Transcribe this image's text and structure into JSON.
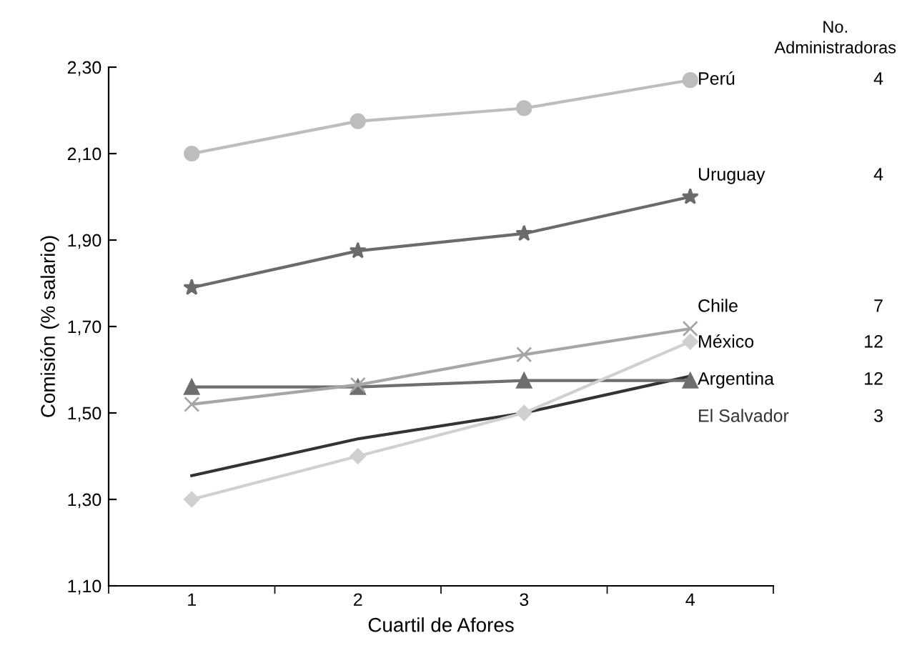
{
  "chart_data": {
    "type": "line",
    "xlabel": "Cuartil de Afores",
    "ylabel": "Comisión (% salario)",
    "categories": [
      "1",
      "2",
      "3",
      "4"
    ],
    "ylim": [
      1.1,
      2.3
    ],
    "yticks": [
      {
        "value": 1.1,
        "label": "1,10"
      },
      {
        "value": 1.3,
        "label": "1,30"
      },
      {
        "value": 1.5,
        "label": "1,50"
      },
      {
        "value": 1.7,
        "label": "1,70"
      },
      {
        "value": 1.9,
        "label": "1,90"
      },
      {
        "value": 2.1,
        "label": "2,10"
      },
      {
        "value": 2.3,
        "label": "2,30"
      }
    ],
    "grid": false,
    "legend": false,
    "line_style": "solid",
    "series": [
      {
        "name": "Perú",
        "color": "#bdbdbf",
        "marker": "circle",
        "values": [
          2.1,
          2.175,
          2.205,
          2.27
        ]
      },
      {
        "name": "Uruguay",
        "color": "#6b6b6b",
        "marker": "star",
        "values": [
          1.79,
          1.875,
          1.915,
          2.0
        ]
      },
      {
        "name": "Chile",
        "color": "#a6a6a6",
        "marker": "cross",
        "values": [
          1.52,
          1.565,
          1.635,
          1.695
        ]
      },
      {
        "name": "México",
        "color": "#d0d0d0",
        "marker": "diamond",
        "values": [
          1.3,
          1.4,
          1.5,
          1.665
        ]
      },
      {
        "name": "Argentina",
        "color": "#6e6e6e",
        "marker": "triangle",
        "values": [
          1.56,
          1.56,
          1.575,
          1.575
        ]
      },
      {
        "name": "El Salvador",
        "color": "#333333",
        "marker": "none",
        "values": [
          1.355,
          1.44,
          1.5,
          1.585
        ]
      }
    ],
    "annotations": [
      "No.\nAdministradoras",
      "4",
      "4",
      "7",
      "12",
      "12",
      "3"
    ]
  }
}
